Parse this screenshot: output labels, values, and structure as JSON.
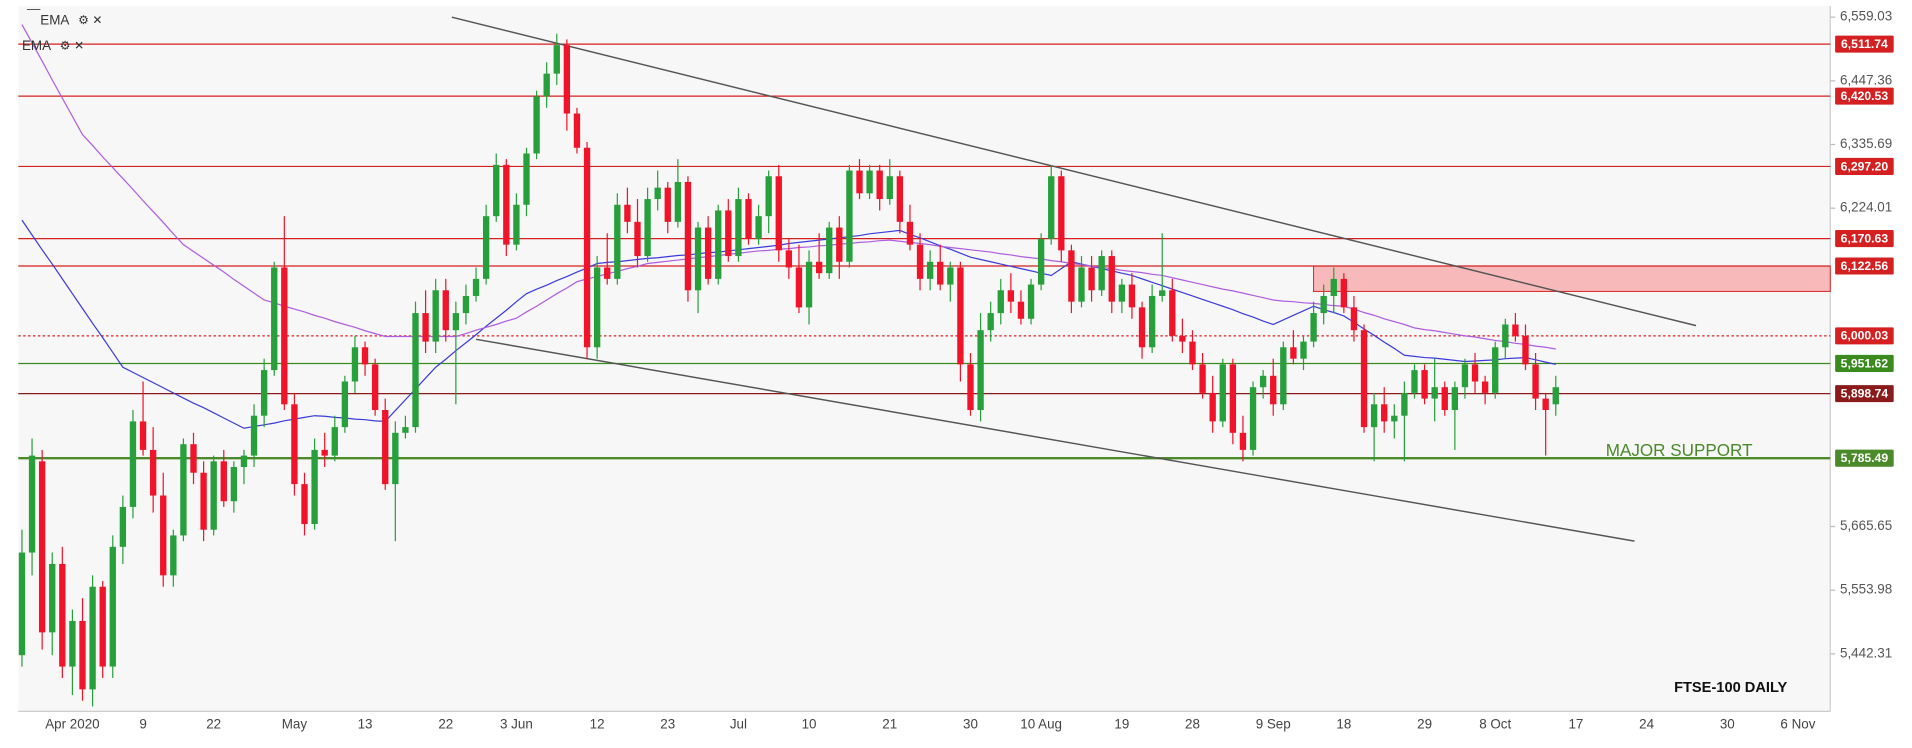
{
  "chart_data": {
    "type": "candlestick",
    "title": "FTSE-100 DAILY",
    "annotation": {
      "text": "MAJOR SUPPORT",
      "color": "#4a8a2a"
    },
    "up_color": "#27a03c",
    "down_color": "#f0142a",
    "ylim": [
      5341.4,
      6578.4
    ],
    "yticks": [
      {
        "value": 6559.03,
        "label": "6,559.03"
      },
      {
        "value": 6447.36,
        "label": "6,447.36"
      },
      {
        "value": 6335.69,
        "label": "6,335.69"
      },
      {
        "value": 6224.01,
        "label": "6,224.01"
      },
      {
        "value": 5665.65,
        "label": "5,665.65"
      },
      {
        "value": 5553.98,
        "label": "5,553.98"
      },
      {
        "value": 5442.31,
        "label": "5,442.31"
      }
    ],
    "grid": false,
    "categories": [
      null,
      null,
      null,
      null,
      null,
      "Apr 2020",
      null,
      null,
      null,
      null,
      null,
      null,
      "9",
      null,
      null,
      null,
      null,
      null,
      null,
      "22",
      null,
      null,
      null,
      null,
      null,
      null,
      null,
      "May",
      null,
      null,
      null,
      null,
      null,
      null,
      "13",
      null,
      null,
      null,
      null,
      null,
      null,
      null,
      "22",
      null,
      null,
      null,
      null,
      null,
      null,
      "3 Jun",
      null,
      null,
      null,
      null,
      null,
      null,
      null,
      "12",
      null,
      null,
      null,
      null,
      null,
      null,
      "23",
      null,
      null,
      null,
      null,
      null,
      null,
      "Jul",
      null,
      null,
      null,
      null,
      null,
      null,
      "10",
      null,
      null,
      null,
      null,
      null,
      null,
      null,
      "21",
      null,
      null,
      null,
      null,
      null,
      null,
      null,
      "30",
      null,
      null,
      null,
      null,
      null,
      null,
      "10 Aug",
      null,
      null,
      null,
      null,
      null,
      null,
      null,
      "19",
      null,
      null,
      null,
      null,
      null,
      null,
      "28",
      null,
      null,
      null,
      null,
      null,
      null,
      null,
      "9 Sep",
      null,
      null,
      null,
      null,
      null,
      null,
      "18",
      null,
      null,
      null,
      null,
      null,
      null,
      null,
      "29",
      null,
      null,
      null,
      null,
      null,
      null,
      "8 Oct",
      null,
      null,
      null,
      null,
      null,
      null,
      null,
      "17",
      null,
      null,
      null,
      null,
      null,
      null,
      "24",
      null,
      null,
      null,
      null,
      null,
      null,
      null,
      "30",
      null,
      null,
      null,
      null,
      null,
      null,
      "6 Nov"
    ],
    "open": [
      5440,
      5620,
      5780,
      5480,
      5600,
      5420,
      5500,
      5380,
      5560,
      5420,
      5630,
      5700,
      5850,
      5800,
      5720,
      5580,
      5650,
      5810,
      5760,
      5660,
      5780,
      5710,
      5770,
      5790,
      5860,
      5940,
      6120,
      5880,
      5740,
      5670,
      5800,
      5790,
      5840,
      5920,
      5980,
      5950,
      5870,
      5740,
      5830,
      5840,
      6040,
      5990,
      6080,
      6010,
      6040,
      6070,
      6100,
      6210,
      6300,
      6160,
      6230,
      6320,
      6420,
      6460,
      6510,
      6390,
      6330,
      5980,
      6120,
      6100,
      6230,
      6200,
      6140,
      6240,
      6260,
      6200,
      6270,
      6080,
      6190,
      6100,
      6220,
      6140,
      6240,
      6170,
      6210,
      6280,
      6150,
      6120,
      6050,
      6130,
      6110,
      6190,
      6130,
      6290,
      6250,
      6290,
      6240,
      6280,
      6200,
      6160,
      6100,
      6130,
      6090,
      6120,
      5950,
      5870,
      6010,
      6040,
      6080,
      6060,
      6030,
      6090,
      6170,
      6280,
      6150,
      6060,
      6120,
      6080,
      6140,
      6060,
      6090,
      6050,
      5980,
      6070,
      6080,
      6000,
      5990,
      5950,
      5900,
      5850,
      5950,
      5830,
      5800,
      5910,
      5930,
      5880,
      5980,
      5960,
      5990,
      6040,
      6070,
      6100,
      6050,
      6010,
      5840,
      5880,
      5850,
      5860,
      5900,
      5940,
      5890,
      5910,
      5870,
      5910,
      5950,
      5920,
      5900,
      5980,
      6020,
      6000,
      5950,
      5890,
      5880,
      null,
      null,
      null,
      null,
      null,
      null,
      null,
      null,
      null,
      null,
      null,
      null,
      null,
      null,
      null,
      null,
      null,
      null,
      null,
      null,
      null,
      null,
      null,
      null
    ],
    "high": [
      5660,
      5820,
      5800,
      5620,
      5630,
      5520,
      5540,
      5580,
      5570,
      5650,
      5720,
      5870,
      5920,
      5840,
      5760,
      5660,
      5820,
      5830,
      5780,
      5790,
      5800,
      5780,
      5800,
      5880,
      5960,
      6130,
      6210,
      5900,
      5760,
      5820,
      5830,
      5860,
      5930,
      6000,
      5990,
      5960,
      5890,
      5850,
      5860,
      6060,
      6080,
      6100,
      6100,
      6060,
      6090,
      6120,
      6230,
      6320,
      6310,
      6250,
      6330,
      6430,
      6480,
      6530,
      6520,
      6400,
      6340,
      6140,
      6180,
      6250,
      6260,
      6240,
      6260,
      6290,
      6270,
      6310,
      6280,
      6200,
      6210,
      6230,
      6240,
      6260,
      6250,
      6230,
      6290,
      6300,
      6170,
      6160,
      6150,
      6180,
      6200,
      6210,
      6300,
      6310,
      6300,
      6300,
      6310,
      6290,
      6230,
      6180,
      6150,
      6160,
      6130,
      6130,
      5970,
      6040,
      6060,
      6100,
      6110,
      6080,
      6100,
      6180,
      6300,
      6290,
      6160,
      6140,
      6140,
      6150,
      6150,
      6100,
      6110,
      6060,
      6090,
      6180,
      6100,
      6030,
      6010,
      5970,
      5930,
      5960,
      5960,
      5860,
      5920,
      5940,
      5960,
      5990,
      6010,
      6000,
      6060,
      6090,
      6120,
      6110,
      6070,
      6020,
      5900,
      5910,
      5880,
      5920,
      5950,
      5950,
      5960,
      5920,
      5920,
      5960,
      5970,
      5930,
      5990,
      6030,
      6040,
      6020,
      5970,
      5900,
      5930,
      null,
      null,
      null,
      null,
      null,
      null,
      null,
      null,
      null,
      null,
      null,
      null,
      null,
      null,
      null,
      null,
      null,
      null,
      null,
      null,
      null,
      null,
      null,
      null
    ],
    "low": [
      5420,
      5580,
      5450,
      5440,
      5400,
      5370,
      5360,
      5350,
      5400,
      5400,
      5600,
      5680,
      5790,
      5690,
      5560,
      5560,
      5640,
      5740,
      5640,
      5650,
      5700,
      5690,
      5740,
      5770,
      5840,
      5930,
      5870,
      5720,
      5650,
      5660,
      5770,
      5780,
      5830,
      5900,
      5930,
      5860,
      5730,
      5640,
      5820,
      5830,
      5970,
      5970,
      5990,
      5880,
      6020,
      6060,
      6090,
      6200,
      6140,
      6150,
      6210,
      6310,
      6400,
      6440,
      6360,
      6320,
      5960,
      5960,
      6090,
      6090,
      6180,
      6120,
      6130,
      6220,
      6180,
      6190,
      6060,
      6040,
      6090,
      6090,
      6130,
      6130,
      6160,
      6160,
      6180,
      6130,
      6100,
      6040,
      6020,
      6100,
      6100,
      6100,
      6120,
      6240,
      6240,
      6220,
      6230,
      6180,
      6150,
      6080,
      6080,
      6080,
      6060,
      5920,
      5860,
      5850,
      5990,
      6020,
      6040,
      6020,
      6020,
      6080,
      6160,
      6130,
      6040,
      6050,
      6060,
      6070,
      6040,
      6040,
      6030,
      5960,
      5970,
      6060,
      5990,
      5970,
      5940,
      5890,
      5830,
      5840,
      5810,
      5780,
      5790,
      5890,
      5860,
      5870,
      5950,
      5940,
      5980,
      6020,
      6040,
      6040,
      5990,
      5830,
      5780,
      5830,
      5820,
      5780,
      5890,
      5880,
      5850,
      5860,
      5800,
      5890,
      5900,
      5880,
      5890,
      5960,
      5990,
      5940,
      5870,
      5790,
      5860,
      null,
      null,
      null,
      null,
      null,
      null,
      null,
      null,
      null,
      null,
      null,
      null,
      null,
      null,
      null,
      null,
      null,
      null,
      null,
      null,
      null,
      null,
      null,
      null
    ],
    "close": [
      5620,
      5790,
      5480,
      5600,
      5420,
      5500,
      5380,
      5560,
      5420,
      5630,
      5700,
      5850,
      5800,
      5720,
      5580,
      5650,
      5810,
      5760,
      5660,
      5780,
      5710,
      5770,
      5790,
      5860,
      5940,
      6120,
      5880,
      5740,
      5670,
      5800,
      5790,
      5840,
      5920,
      5980,
      5950,
      5870,
      5740,
      5830,
      5840,
      6040,
      5990,
      6080,
      6010,
      6040,
      6070,
      6100,
      6210,
      6300,
      6160,
      6230,
      6320,
      6420,
      6460,
      6510,
      6390,
      6330,
      5980,
      6120,
      6100,
      6230,
      6200,
      6140,
      6240,
      6260,
      6200,
      6270,
      6080,
      6190,
      6100,
      6220,
      6140,
      6240,
      6170,
      6210,
      6280,
      6150,
      6120,
      6050,
      6130,
      6110,
      6190,
      6130,
      6290,
      6250,
      6290,
      6240,
      6280,
      6200,
      6160,
      6100,
      6130,
      6090,
      6120,
      5950,
      5870,
      6010,
      6040,
      6080,
      6060,
      6030,
      6090,
      6170,
      6280,
      6150,
      6060,
      6120,
      6080,
      6140,
      6060,
      6090,
      6050,
      5980,
      6070,
      6080,
      6000,
      5990,
      5950,
      5900,
      5850,
      5950,
      5830,
      5800,
      5910,
      5930,
      5880,
      5980,
      5960,
      5990,
      6040,
      6070,
      6100,
      6050,
      6010,
      5840,
      5880,
      5850,
      5860,
      5900,
      5940,
      5890,
      5910,
      5870,
      5910,
      5950,
      5920,
      5900,
      5980,
      6020,
      6000,
      5950,
      5890,
      5870,
      5910,
      null,
      null,
      null,
      null,
      null,
      null,
      null,
      null,
      null,
      null,
      null,
      null,
      null,
      null,
      null,
      null,
      null,
      null,
      null,
      null,
      null,
      null,
      null,
      null
    ],
    "ema": [
      {
        "name": "EMA",
        "color": "#3b3bdc",
        "values": [
          6203,
          6177,
          6151,
          6126,
          6100,
          6074,
          6048,
          6022,
          5997,
          5971,
          5945,
          5936,
          5927,
          5918,
          5909,
          5900,
          5891,
          5882,
          5874,
          5865,
          5856,
          5847,
          5838,
          5841,
          5844,
          5847,
          5851,
          5854,
          5857,
          5860,
          5859,
          5857,
          5856,
          5854,
          5853,
          5851,
          5850,
          5869,
          5888,
          5907,
          5926,
          5945,
          5959,
          5974,
          5988,
          6002,
          6017,
          6031,
          6045,
          6060,
          6074,
          6082,
          6089,
          6097,
          6104,
          6112,
          6119,
          6127,
          6129,
          6130,
          6132,
          6134,
          6136,
          6137,
          6139,
          6141,
          6142,
          6144,
          6146,
          6147,
          6149,
          6151,
          6153,
          6155,
          6157,
          6159,
          6162,
          6164,
          6166,
          6168,
          6170,
          6172,
          6174,
          6176,
          6179,
          6181,
          6183,
          6185,
          6178,
          6172,
          6165,
          6158,
          6152,
          6145,
          6138,
          6134,
          6130,
          6126,
          6122,
          6118,
          6114,
          6110,
          6106,
          6118,
          6130,
          6126,
          6122,
          6118,
          6114,
          6110,
          6106,
          6100,
          6094,
          6088,
          6082,
          6076,
          6070,
          6064,
          6058,
          6052,
          6046,
          6039,
          6033,
          6026,
          6020,
          6028,
          6036,
          6044,
          6052,
          6046,
          6041,
          6035,
          6024,
          6012,
          6001,
          5989,
          5978,
          5966,
          5964,
          5962,
          5961,
          5959,
          5957,
          5955,
          5956,
          5957,
          5958,
          5960,
          5961,
          5962,
          5958,
          5954,
          5950,
          null,
          null,
          null,
          null,
          null,
          null,
          null,
          null,
          null,
          null,
          null,
          null,
          null,
          null,
          null,
          null,
          null,
          null,
          null,
          null,
          null,
          null,
          null,
          null
        ]
      },
      {
        "name": "EMA",
        "color": "#b05ce0",
        "values": [
          6546,
          6514,
          6482,
          6449,
          6417,
          6385,
          6353,
          6334,
          6314,
          6295,
          6276,
          6257,
          6237,
          6218,
          6199,
          6179,
          6160,
          6148,
          6136,
          6124,
          6112,
          6099,
          6087,
          6075,
          6063,
          6058,
          6052,
          6047,
          6042,
          6036,
          6031,
          6025,
          6020,
          6015,
          6009,
          6004,
          5999,
          5999,
          5999,
          5999,
          5999,
          5999,
          5999,
          5999,
          6004,
          6010,
          6015,
          6020,
          6026,
          6031,
          6042,
          6052,
          6063,
          6074,
          6084,
          6095,
          6100,
          6104,
          6109,
          6113,
          6118,
          6122,
          6127,
          6129,
          6131,
          6133,
          6135,
          6137,
          6139,
          6141,
          6143,
          6145,
          6147,
          6149,
          6150,
          6152,
          6153,
          6155,
          6156,
          6158,
          6159,
          6161,
          6162,
          6164,
          6165,
          6167,
          6168,
          6166,
          6164,
          6162,
          6160,
          6157,
          6155,
          6153,
          6151,
          6149,
          6147,
          6144,
          6142,
          6139,
          6137,
          6135,
          6132,
          6130,
          6127,
          6125,
          6122,
          6120,
          6118,
          6115,
          6113,
          6111,
          6108,
          6106,
          6102,
          6098,
          6094,
          6090,
          6086,
          6082,
          6079,
          6075,
          6071,
          6067,
          6063,
          6061,
          6060,
          6058,
          6057,
          6055,
          6053,
          6052,
          6047,
          6041,
          6036,
          6030,
          6025,
          6020,
          6014,
          6011,
          6009,
          6006,
          6003,
          6000,
          5998,
          5995,
          5992,
          5990,
          5987,
          5985,
          5982,
          5980,
          5977,
          null,
          null,
          null,
          null,
          null,
          null,
          null,
          null,
          null,
          null,
          null,
          null,
          null,
          null,
          null,
          null,
          null,
          null,
          null,
          null,
          null,
          null,
          null,
          null
        ]
      }
    ],
    "levels": [
      {
        "value": 6511.74,
        "label": "6,511.74",
        "color": "#d42020",
        "style": "solid"
      },
      {
        "value": 6420.53,
        "label": "6,420.53",
        "color": "#d42020",
        "style": "solid"
      },
      {
        "value": 6297.2,
        "label": "6,297.20",
        "color": "#d42020",
        "style": "solid"
      },
      {
        "value": 6170.63,
        "label": "6,170.63",
        "color": "#d42020",
        "style": "solid"
      },
      {
        "value": 6122.56,
        "label": "6,122.56",
        "color": "#d42020",
        "style": "solid"
      },
      {
        "value": 6000.03,
        "label": "6,000.03",
        "color": "#d42020",
        "style": "dotted"
      },
      {
        "value": 5951.62,
        "label": "5,951.62",
        "color": "#3a8a1e",
        "style": "solid"
      },
      {
        "value": 5898.74,
        "label": "5,898.74",
        "color": "#8b1a1a",
        "style": "solid"
      },
      {
        "value": 5785.49,
        "label": "5,785.49",
        "color": "#4a8a2a",
        "style": "thick"
      }
    ],
    "zone": {
      "start": 128,
      "low": 6078,
      "high": 6122.56,
      "color": "#f7b9b9"
    },
    "trendlines": [
      {
        "start": [
          42.6,
          6559
        ],
        "end": [
          165.9,
          6018
        ],
        "color": "#555555"
      },
      {
        "start": [
          45,
          5994
        ],
        "end": [
          159.8,
          5640
        ],
        "color": "#555555"
      }
    ]
  }
}
